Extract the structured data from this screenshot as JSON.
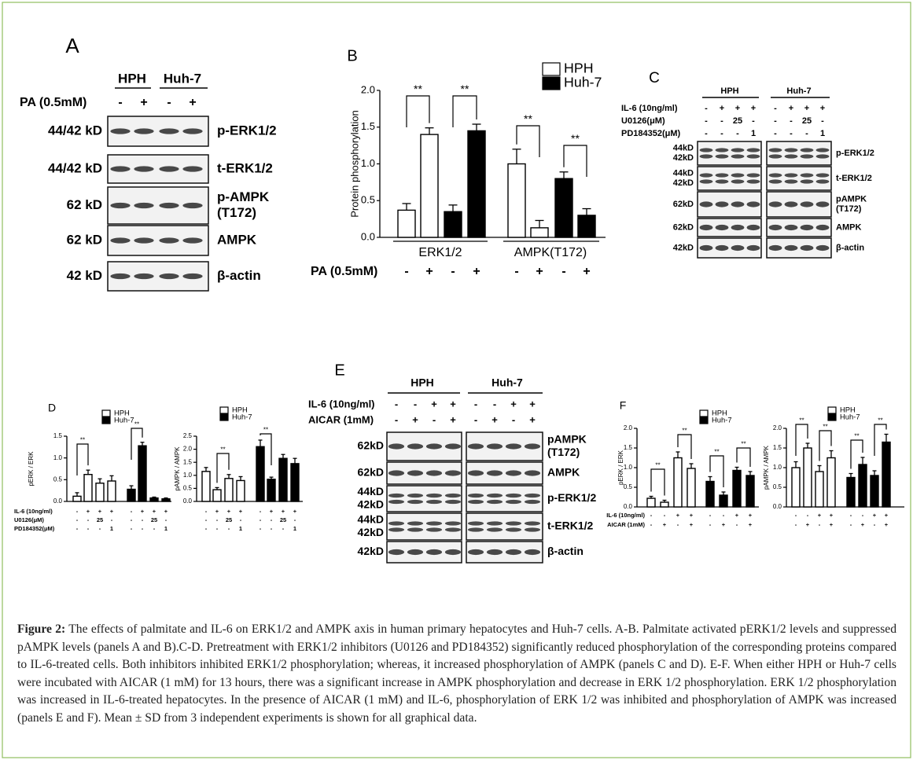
{
  "blots": {
    "a": {
      "label": "A",
      "groups": [
        "HPH",
        "Huh-7"
      ],
      "treatments": [
        {
          "label": "PA (0.5mM)",
          "signs": [
            "-",
            "+",
            "-",
            "+"
          ]
        }
      ],
      "rows": [
        {
          "size": "44/42 kD",
          "name": "p-ERK1/2"
        },
        {
          "size": "44/42 kD",
          "name": "t-ERK1/2"
        },
        {
          "size": "62 kD",
          "name": [
            "p-AMPK",
            "(T172)"
          ]
        },
        {
          "size": "62 kD",
          "name": "AMPK"
        },
        {
          "size": "42 kD",
          "name": "β-actin"
        }
      ]
    },
    "c": {
      "label": "C",
      "groups": [
        "HPH",
        "Huh-7"
      ],
      "treatments": [
        {
          "label": "IL-6 (10ng/ml)",
          "signs": [
            "-",
            "+",
            "+",
            "+",
            "-",
            "+",
            "+",
            "+"
          ]
        },
        {
          "label": "U0126(μM)",
          "signs": [
            "-",
            "-",
            "25",
            "-",
            "-",
            "-",
            "25",
            "-"
          ]
        },
        {
          "label": "PD184352(μM)",
          "signs": [
            "-",
            "-",
            "-",
            "1",
            "-",
            "-",
            "-",
            "1"
          ]
        }
      ],
      "rows": [
        {
          "size": [
            "44kD",
            "42kD"
          ],
          "name": "p-ERK1/2"
        },
        {
          "size": [
            "44kD",
            "42kD"
          ],
          "name": "t-ERK1/2"
        },
        {
          "size": "62kD",
          "name": [
            "pAMPK",
            "(T172)"
          ]
        },
        {
          "size": "62kD",
          "name": "AMPK"
        },
        {
          "size": "42kD",
          "name": "β-actin"
        }
      ]
    },
    "e": {
      "label": "E",
      "groups": [
        "HPH",
        "Huh-7"
      ],
      "treatments": [
        {
          "label": "IL-6 (10ng/ml)",
          "signs": [
            "-",
            "-",
            "+",
            "+",
            "-",
            "-",
            "+",
            "+"
          ]
        },
        {
          "label": "AICAR (1mM)",
          "signs": [
            "-",
            "+",
            "-",
            "+",
            "-",
            "+",
            "-",
            "+"
          ]
        }
      ],
      "rows": [
        {
          "size": "62kD",
          "name": [
            "pAMPK",
            "(T172)"
          ]
        },
        {
          "size": "62kD",
          "name": "AMPK"
        },
        {
          "size": [
            "44kD",
            "42kD"
          ],
          "name": "p-ERK1/2"
        },
        {
          "size": [
            "44kD",
            "42kD"
          ],
          "name": "t-ERK1/2"
        },
        {
          "size": "42kD",
          "name": "β-actin"
        }
      ]
    }
  },
  "chart_data": [
    {
      "type": "bar",
      "panel": "B",
      "ylabel": "Protein phosphorylation",
      "ylim": [
        0,
        2
      ],
      "yticks": [
        {
          "value": 0,
          "label": "0.0"
        },
        0.5,
        {
          "value": 1,
          "label": "1.0"
        },
        1.5,
        {
          "value": 2,
          "label": "2.0"
        }
      ],
      "groups": [
        "ERK1/2",
        "AMPK(T172)"
      ],
      "series": [
        {
          "name": "HPH",
          "color": "#ffffff",
          "values": [
            0.37,
            1.4,
            1.0,
            0.13
          ],
          "errors": [
            0.09,
            0.09,
            0.2,
            0.1
          ]
        },
        {
          "name": "Huh-7",
          "color": "#000000",
          "values": [
            0.35,
            1.45,
            0.8,
            0.3
          ],
          "errors": [
            0.09,
            0.09,
            0.09,
            0.09
          ]
        }
      ],
      "significance": [
        "**",
        "**",
        "**",
        "**"
      ],
      "treatments": [
        {
          "label": "PA (0.5mM)",
          "signs": [
            "-",
            "+",
            "-",
            "+",
            "-",
            "+",
            "-",
            "+"
          ]
        }
      ]
    },
    {
      "type": "bar",
      "panel": "D",
      "ylabel": "pERK / ERK",
      "ylim": [
        0,
        1.5
      ],
      "yticks": [
        {
          "value": 0,
          "label": "0.0"
        },
        0.5,
        {
          "value": 1,
          "label": "1.0"
        },
        1.5
      ],
      "series": [
        {
          "name": "HPH",
          "color": "#ffffff",
          "values": [
            0.12,
            0.62,
            0.42,
            0.47
          ],
          "errors": [
            0.08,
            0.1,
            0.1,
            0.12
          ]
        },
        {
          "name": "Huh-7",
          "color": "#000000",
          "values": [
            0.28,
            1.28,
            0.08,
            0.06
          ],
          "errors": [
            0.08,
            0.08,
            0.02,
            0.02
          ]
        }
      ],
      "significance": [
        "**",
        "**"
      ],
      "treatments": [
        {
          "label": "IL-6 (10ng/ml)",
          "signs": [
            "-",
            "+",
            "+",
            "+",
            "-",
            "+",
            "+",
            "+"
          ]
        },
        {
          "label": "U0126(μM)",
          "signs": [
            "-",
            "-",
            "25",
            "-",
            "-",
            "-",
            "25",
            "-"
          ]
        },
        {
          "label": "PD184352(μM)",
          "signs": [
            "-",
            "-",
            "-",
            "1",
            "-",
            "-",
            "-",
            "1"
          ]
        }
      ]
    },
    {
      "type": "bar",
      "ylabel": "pAMPK / AMPK",
      "ylim": [
        0,
        2.5
      ],
      "yticks": [
        {
          "value": 0,
          "label": "0.0"
        },
        0.5,
        {
          "value": 1,
          "label": "1.0"
        },
        1.5,
        {
          "value": 2,
          "label": "2.0"
        },
        2.5
      ],
      "series": [
        {
          "name": "HPH",
          "color": "#ffffff",
          "values": [
            1.15,
            0.45,
            0.88,
            0.8
          ],
          "errors": [
            0.15,
            0.08,
            0.15,
            0.15
          ]
        },
        {
          "name": "Huh-7",
          "color": "#000000",
          "values": [
            2.1,
            0.85,
            1.65,
            1.45
          ],
          "errors": [
            0.25,
            0.08,
            0.15,
            0.2
          ]
        }
      ],
      "significance": [
        "**",
        "**"
      ],
      "treatments": [
        {
          "signs": [
            "-",
            "+",
            "+",
            "+",
            "-",
            "+",
            "+",
            "+"
          ]
        },
        {
          "signs": [
            "-",
            "-",
            "25",
            "-",
            "-",
            "-",
            "25",
            "-"
          ]
        },
        {
          "signs": [
            "-",
            "-",
            "-",
            "1",
            "-",
            "-",
            "-",
            "1"
          ]
        }
      ]
    },
    {
      "type": "bar",
      "panel": "F",
      "ylabel": "pERK / ERK",
      "ylim": [
        0,
        2
      ],
      "yticks": [
        {
          "value": 0,
          "label": "0.0"
        },
        0.5,
        {
          "value": 1,
          "label": "1.0"
        },
        1.5,
        {
          "value": 2,
          "label": "2.0"
        }
      ],
      "series": [
        {
          "name": "HPH",
          "color": "#ffffff",
          "values": [
            0.22,
            0.12,
            1.25,
            0.98
          ],
          "errors": [
            0.05,
            0.05,
            0.15,
            0.12
          ]
        },
        {
          "name": "Huh-7",
          "color": "#000000",
          "values": [
            0.65,
            0.3,
            0.93,
            0.8
          ],
          "errors": [
            0.12,
            0.08,
            0.08,
            0.1
          ]
        }
      ],
      "significance": [
        "**",
        "**",
        "**",
        "**"
      ],
      "treatments": [
        {
          "label": "IL-6 (10ng/ml)",
          "signs": [
            "-",
            "-",
            "+",
            "+",
            "-",
            "-",
            "+",
            "+"
          ]
        },
        {
          "label": "AICAR (1mM)",
          "signs": [
            "-",
            "+",
            "-",
            "+",
            "-",
            "+",
            "-",
            "+"
          ]
        }
      ]
    },
    {
      "type": "bar",
      "ylabel": "pAMPK / AMPK",
      "ylim": [
        0,
        2
      ],
      "yticks": [
        {
          "value": 0,
          "label": "0.0"
        },
        0.5,
        {
          "value": 1,
          "label": "1.0"
        },
        1.5,
        {
          "value": 2,
          "label": "2.0"
        }
      ],
      "series": [
        {
          "name": "HPH",
          "color": "#ffffff",
          "values": [
            1.0,
            1.5,
            0.9,
            1.25
          ],
          "errors": [
            0.15,
            0.12,
            0.15,
            0.18
          ]
        },
        {
          "name": "Huh-7",
          "color": "#000000",
          "values": [
            0.75,
            1.08,
            0.8,
            1.65
          ],
          "errors": [
            0.1,
            0.18,
            0.12,
            0.2
          ]
        }
      ],
      "significance": [
        "**",
        "**",
        "**",
        "**"
      ],
      "treatments": [
        {
          "signs": [
            "-",
            "-",
            "+",
            "+",
            "-",
            "-",
            "+",
            "+"
          ]
        },
        {
          "signs": [
            "-",
            "+",
            "-",
            "+",
            "-",
            "+",
            "-",
            "+"
          ]
        }
      ]
    }
  ],
  "caption": {
    "label": "Figure 2:",
    "text": "The effects of palmitate and IL-6 on ERK1/2 and AMPK axis in human primary hepatocytes and Huh-7 cells.  A-B. Palmitate activated pERK1/2 levels and suppressed pAMPK levels (panels A and B).C-D. Pretreatment with ERK1/2 inhibitors (U0126 and PD184352) significantly reduced phosphorylation of the corresponding proteins compared to IL-6-treated cells. Both inhibitors inhibited ERK1/2 phosphorylation; whereas, it increased phosphorylation of AMPK (panels C and D). E-F. When either HPH or Huh-7 cells were incubated with AICAR (1 mM) for 13 hours, there was a significant increase in AMPK phosphorylation and decrease in ERK 1/2 phosphorylation. ERK 1/2 phosphorylation was increased in IL-6-treated hepatocytes. In the presence of AICAR (1 mM) and IL-6, phosphorylation of ERK 1/2 was inhibited and phosphorylation of AMPK was increased (panels E and F). Mean ± SD from 3 independent experiments is shown for all graphical data."
  }
}
